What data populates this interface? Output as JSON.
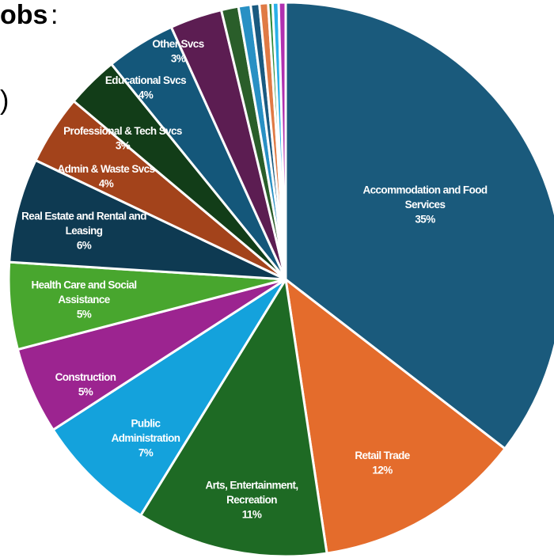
{
  "title_fragment": "obs",
  "title_colon": ":",
  "paren_fragment": ")",
  "chart_data": {
    "type": "pie",
    "title": "",
    "slices": [
      {
        "label": [
          "Accommodation and Food",
          "Services"
        ],
        "value": 35,
        "pct": "35%",
        "color": "#1a5a7c"
      },
      {
        "label": [
          "Retail Trade"
        ],
        "value": 12,
        "pct": "12%",
        "color": "#e46c2c"
      },
      {
        "label": [
          "Arts, Entertainment,",
          "Recreation"
        ],
        "value": 11,
        "pct": "11%",
        "color": "#1e6a24"
      },
      {
        "label": [
          "Public",
          "Administration"
        ],
        "value": 7,
        "pct": "7%",
        "color": "#14a2dc"
      },
      {
        "label": [
          "Construction"
        ],
        "value": 5,
        "pct": "5%",
        "color": "#9c2490"
      },
      {
        "label": [
          "Health Care and Social",
          "Assistance"
        ],
        "value": 5,
        "pct": "5%",
        "color": "#48a62e"
      },
      {
        "label": [
          "Real Estate and Rental and",
          "Leasing"
        ],
        "value": 6,
        "pct": "6%",
        "color": "#0e3a52"
      },
      {
        "label": [
          "Admin & Waste Svcs"
        ],
        "value": 4,
        "pct": "4%",
        "color": "#a3431b"
      },
      {
        "label": [
          "Professional & Tech Svcs"
        ],
        "value": 3,
        "pct": "3%",
        "color": "#123d18"
      },
      {
        "label": [
          "Educational Svcs"
        ],
        "value": 4,
        "pct": "4%",
        "color": "#14577a"
      },
      {
        "label": [
          "Other Svcs"
        ],
        "value": 3,
        "pct": "3%",
        "color": "#5c1d52"
      },
      {
        "label": [],
        "value": 0.99,
        "pct": "",
        "color": "#2a5e2a"
      },
      {
        "label": [],
        "value": 0.7,
        "pct": "",
        "color": "#2890c4"
      },
      {
        "label": [],
        "value": 0.5,
        "pct": "",
        "color": "#1a5a80"
      },
      {
        "label": [],
        "value": 0.5,
        "pct": "",
        "color": "#e07a45"
      },
      {
        "label": [],
        "value": 0.25,
        "pct": "",
        "color": "#2e8a3a"
      },
      {
        "label": [],
        "value": 0.35,
        "pct": "",
        "color": "#2ab0e8"
      },
      {
        "label": [],
        "value": 0.4,
        "pct": "",
        "color": "#b030b0"
      }
    ]
  }
}
